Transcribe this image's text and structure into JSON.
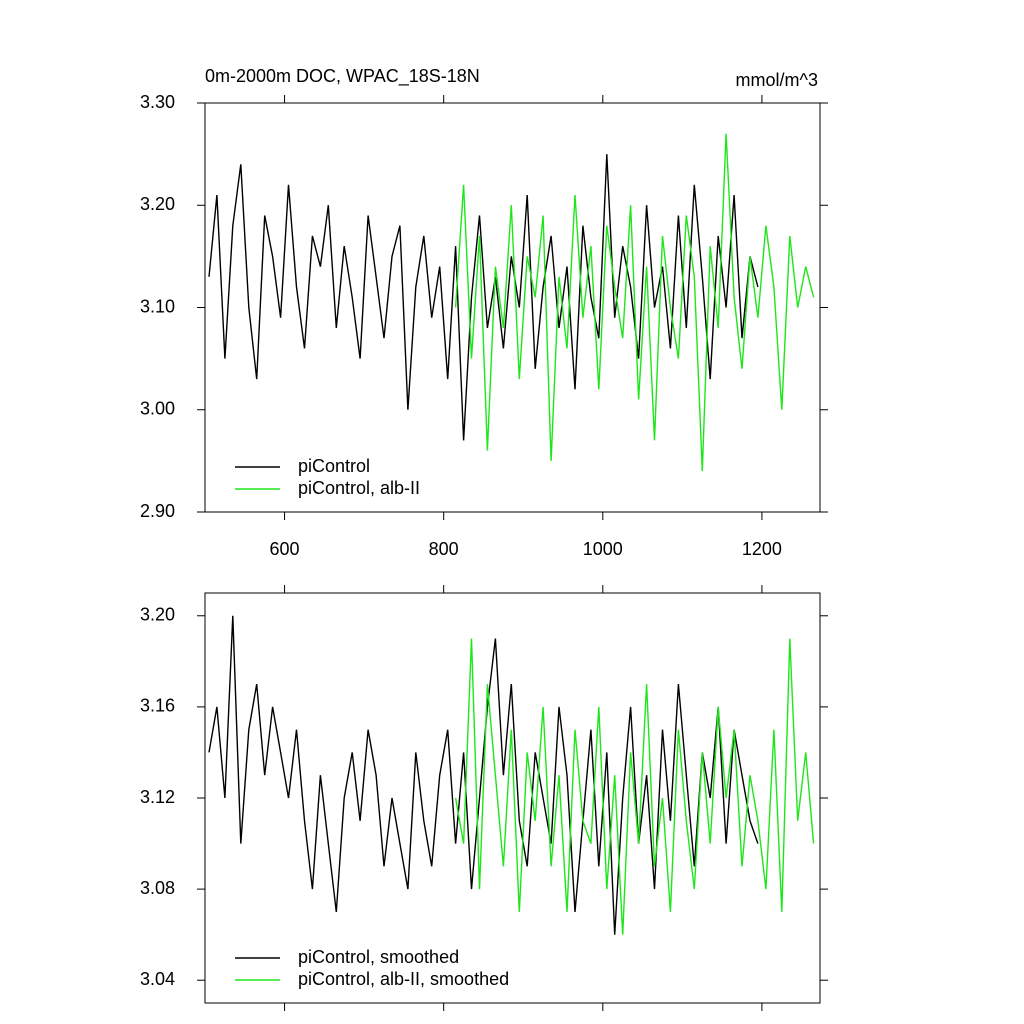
{
  "chart_data": [
    {
      "type": "line",
      "title": "0m-2000m DOC, WPAC_18S-18N",
      "units": "mmol/m^3",
      "xlim": [
        500,
        1273
      ],
      "xticks": [
        600,
        800,
        1000,
        1200
      ],
      "ylim": [
        2.9,
        3.3
      ],
      "yticks": [
        {
          "value": 2.9,
          "label": "2.90"
        },
        {
          "value": 3.0,
          "label": "3.00"
        },
        {
          "value": 3.1,
          "label": "3.10"
        },
        {
          "value": 3.2,
          "label": "3.20"
        },
        {
          "value": 3.3,
          "label": "3.30"
        }
      ],
      "legend": "lower left",
      "series": [
        {
          "name": "piControl",
          "color": "#000000",
          "x": [
            505,
            515,
            525,
            535,
            545,
            555,
            565,
            575,
            585,
            595,
            605,
            615,
            625,
            635,
            645,
            655,
            665,
            675,
            685,
            695,
            705,
            715,
            725,
            735,
            745,
            755,
            765,
            775,
            785,
            795,
            805,
            815,
            825,
            835,
            845,
            855,
            865,
            875,
            885,
            895,
            905,
            915,
            925,
            935,
            945,
            955,
            965,
            975,
            985,
            995,
            1005,
            1015,
            1025,
            1035,
            1045,
            1055,
            1065,
            1075,
            1085,
            1095,
            1105,
            1115,
            1125,
            1135,
            1145,
            1155,
            1165,
            1175,
            1185,
            1195
          ],
          "values": [
            3.13,
            3.21,
            3.05,
            3.18,
            3.24,
            3.1,
            3.03,
            3.19,
            3.15,
            3.09,
            3.22,
            3.12,
            3.06,
            3.17,
            3.14,
            3.2,
            3.08,
            3.16,
            3.11,
            3.05,
            3.19,
            3.13,
            3.07,
            3.15,
            3.18,
            3.0,
            3.12,
            3.17,
            3.09,
            3.14,
            3.03,
            3.16,
            2.97,
            3.11,
            3.19,
            3.08,
            3.13,
            3.06,
            3.15,
            3.1,
            3.21,
            3.04,
            3.12,
            3.17,
            3.08,
            3.14,
            3.02,
            3.18,
            3.11,
            3.07,
            3.25,
            3.09,
            3.16,
            3.12,
            3.05,
            3.2,
            3.1,
            3.14,
            3.06,
            3.19,
            3.08,
            3.22,
            3.13,
            3.03,
            3.17,
            3.1,
            3.21,
            3.07,
            3.15,
            3.12
          ]
        },
        {
          "name": "piControl, alb-II",
          "color": "#1ee61a",
          "x": [
            815,
            825,
            835,
            845,
            855,
            865,
            875,
            885,
            895,
            905,
            915,
            925,
            935,
            945,
            955,
            965,
            975,
            985,
            995,
            1005,
            1015,
            1025,
            1035,
            1045,
            1055,
            1065,
            1075,
            1085,
            1095,
            1105,
            1115,
            1125,
            1135,
            1145,
            1155,
            1165,
            1175,
            1185,
            1195,
            1205,
            1215,
            1225,
            1235,
            1245,
            1255,
            1265
          ],
          "values": [
            3.1,
            3.22,
            3.05,
            3.17,
            2.96,
            3.14,
            3.08,
            3.2,
            3.03,
            3.15,
            3.11,
            3.19,
            2.95,
            3.13,
            3.06,
            3.21,
            3.09,
            3.16,
            3.02,
            3.18,
            3.12,
            3.07,
            3.2,
            3.01,
            3.14,
            2.97,
            3.17,
            3.1,
            3.05,
            3.19,
            3.13,
            2.94,
            3.16,
            3.08,
            3.27,
            3.11,
            3.04,
            3.15,
            3.09,
            3.18,
            3.12,
            3.0,
            3.17,
            3.1,
            3.14,
            3.11
          ]
        }
      ]
    },
    {
      "type": "line",
      "xlim": [
        500,
        1273
      ],
      "xticks": [
        600,
        800,
        1000,
        1200
      ],
      "ylim": [
        3.03,
        3.21
      ],
      "yticks": [
        3.04,
        3.08,
        3.12,
        3.16,
        {
          "value": 3.2,
          "label": "3.20"
        }
      ],
      "legend": "lower left",
      "series": [
        {
          "name": "piControl, smoothed",
          "color": "#000000",
          "x": [
            505,
            515,
            525,
            535,
            545,
            555,
            565,
            575,
            585,
            595,
            605,
            615,
            625,
            635,
            645,
            655,
            665,
            675,
            685,
            695,
            705,
            715,
            725,
            735,
            745,
            755,
            765,
            775,
            785,
            795,
            805,
            815,
            825,
            835,
            845,
            855,
            865,
            875,
            885,
            895,
            905,
            915,
            925,
            935,
            945,
            955,
            965,
            975,
            985,
            995,
            1005,
            1015,
            1025,
            1035,
            1045,
            1055,
            1065,
            1075,
            1085,
            1095,
            1105,
            1115,
            1125,
            1135,
            1145,
            1155,
            1165,
            1175,
            1185,
            1195
          ],
          "values": [
            3.14,
            3.16,
            3.12,
            3.2,
            3.1,
            3.15,
            3.17,
            3.13,
            3.16,
            3.14,
            3.12,
            3.15,
            3.11,
            3.08,
            3.13,
            3.1,
            3.07,
            3.12,
            3.14,
            3.11,
            3.15,
            3.13,
            3.09,
            3.12,
            3.1,
            3.08,
            3.14,
            3.11,
            3.09,
            3.13,
            3.15,
            3.1,
            3.14,
            3.08,
            3.12,
            3.16,
            3.19,
            3.13,
            3.17,
            3.11,
            3.09,
            3.14,
            3.12,
            3.1,
            3.16,
            3.13,
            3.07,
            3.11,
            3.15,
            3.09,
            3.14,
            3.06,
            3.12,
            3.16,
            3.1,
            3.13,
            3.08,
            3.15,
            3.11,
            3.17,
            3.13,
            3.09,
            3.14,
            3.12,
            3.16,
            3.1,
            3.15,
            3.13,
            3.11,
            3.1
          ]
        },
        {
          "name": "piControl, alb-II, smoothed",
          "color": "#1ee61a",
          "x": [
            815,
            825,
            835,
            845,
            855,
            865,
            875,
            885,
            895,
            905,
            915,
            925,
            935,
            945,
            955,
            965,
            975,
            985,
            995,
            1005,
            1015,
            1025,
            1035,
            1045,
            1055,
            1065,
            1075,
            1085,
            1095,
            1105,
            1115,
            1125,
            1135,
            1145,
            1155,
            1165,
            1175,
            1185,
            1195,
            1205,
            1215,
            1225,
            1235,
            1245,
            1255,
            1265
          ],
          "values": [
            3.12,
            3.1,
            3.19,
            3.08,
            3.17,
            3.13,
            3.09,
            3.15,
            3.07,
            3.14,
            3.11,
            3.16,
            3.09,
            3.13,
            3.07,
            3.15,
            3.11,
            3.1,
            3.16,
            3.08,
            3.13,
            3.06,
            3.14,
            3.1,
            3.17,
            3.09,
            3.12,
            3.07,
            3.15,
            3.11,
            3.08,
            3.14,
            3.1,
            3.16,
            3.12,
            3.15,
            3.09,
            3.13,
            3.11,
            3.08,
            3.15,
            3.07,
            3.19,
            3.11,
            3.14,
            3.1
          ]
        }
      ]
    }
  ]
}
